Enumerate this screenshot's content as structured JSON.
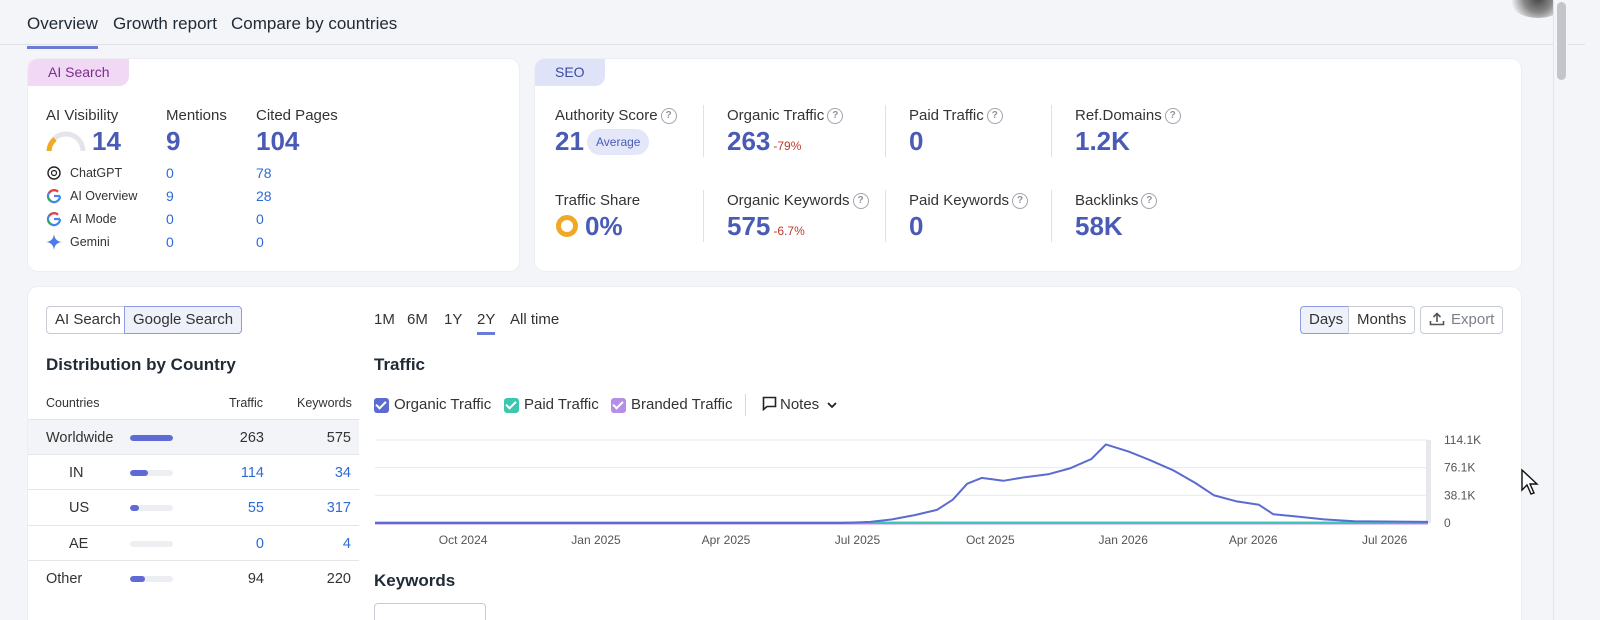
{
  "tabs": [
    {
      "label": "Overview",
      "active": true
    },
    {
      "label": "Growth report",
      "active": false
    },
    {
      "label": "Compare by countries",
      "active": false
    }
  ],
  "ai_card": {
    "tag": "AI Search",
    "visibility_label": "AI Visibility",
    "visibility_value": "14",
    "mentions_label": "Mentions",
    "mentions_value": "9",
    "cited_label": "Cited Pages",
    "cited_value": "104",
    "sources": [
      {
        "name": "ChatGPT",
        "mentions": "0",
        "cited": "78",
        "icon": "chatgpt-icon"
      },
      {
        "name": "AI Overview",
        "mentions": "9",
        "cited": "28",
        "icon": "google-icon"
      },
      {
        "name": "AI Mode",
        "mentions": "0",
        "cited": "0",
        "icon": "google-icon"
      },
      {
        "name": "Gemini",
        "mentions": "0",
        "cited": "0",
        "icon": "gemini-icon"
      }
    ]
  },
  "seo_card": {
    "tag": "SEO",
    "authority_label": "Authority Score",
    "authority_value": "21",
    "authority_badge": "Average",
    "traffic_share_label": "Traffic Share",
    "traffic_share_value": "0%",
    "organic_traffic_label": "Organic Traffic",
    "organic_traffic_value": "263",
    "organic_traffic_delta": "-79%",
    "organic_keywords_label": "Organic Keywords",
    "organic_keywords_value": "575",
    "organic_keywords_delta": "-6.7%",
    "paid_traffic_label": "Paid Traffic",
    "paid_traffic_value": "0",
    "paid_keywords_label": "Paid Keywords",
    "paid_keywords_value": "0",
    "ref_domains_label": "Ref.Domains",
    "ref_domains_value": "1.2K",
    "backlinks_label": "Backlinks",
    "backlinks_value": "58K"
  },
  "search_toggle": [
    "AI Search",
    "Google Search"
  ],
  "ranges": [
    "1M",
    "6M",
    "1Y",
    "2Y",
    "All time"
  ],
  "active_range": "2Y",
  "granularity": [
    "Days",
    "Months"
  ],
  "export_label": "Export",
  "distribution": {
    "title": "Distribution by Country",
    "headers": {
      "country": "Countries",
      "traffic": "Traffic",
      "keywords": "Keywords"
    },
    "rows": [
      {
        "name": "Worldwide",
        "traffic": "263",
        "keywords": "575",
        "share": 1.0
      },
      {
        "name": "IN",
        "traffic": "114",
        "keywords": "34",
        "share": 0.43
      },
      {
        "name": "US",
        "traffic": "55",
        "keywords": "317",
        "share": 0.21
      },
      {
        "name": "AE",
        "traffic": "0",
        "keywords": "4",
        "share": 0.0
      },
      {
        "name": "Other",
        "traffic": "94",
        "keywords": "220",
        "share": 0.36
      }
    ]
  },
  "traffic_section": {
    "title": "Traffic",
    "legend": [
      {
        "label": "Organic Traffic",
        "color": "#5b6bd1",
        "checked": true
      },
      {
        "label": "Paid Traffic",
        "color": "#3cc8b0",
        "checked": true
      },
      {
        "label": "Branded Traffic",
        "color": "#b58ee6",
        "checked": true
      }
    ],
    "notes_label": "Notes"
  },
  "keywords_title": "Keywords",
  "chart_data": {
    "type": "line",
    "x_ticks": [
      "Oct 2024",
      "Jan 2025",
      "Apr 2025",
      "Jul 2025",
      "Oct 2025",
      "Jan 2026",
      "Apr 2026",
      "Jul 2026"
    ],
    "y_ticks": [
      "114.1K",
      "76.1K",
      "38.1K",
      "0"
    ],
    "ylim": [
      0,
      114100
    ],
    "x_range": [
      "2024-08-01",
      "2026-07-31"
    ],
    "series": [
      {
        "name": "Organic Traffic",
        "color": "#5b6bd1",
        "points": [
          [
            "2024-08-01",
            0
          ],
          [
            "2025-06-20",
            0
          ],
          [
            "2025-07-10",
            1500
          ],
          [
            "2025-07-25",
            5000
          ],
          [
            "2025-08-10",
            11000
          ],
          [
            "2025-08-25",
            18000
          ],
          [
            "2025-09-05",
            32000
          ],
          [
            "2025-09-15",
            54000
          ],
          [
            "2025-09-25",
            62000
          ],
          [
            "2025-10-10",
            58000
          ],
          [
            "2025-10-25",
            63000
          ],
          [
            "2025-11-10",
            67000
          ],
          [
            "2025-11-25",
            75000
          ],
          [
            "2025-12-10",
            88000
          ],
          [
            "2025-12-20",
            108000
          ],
          [
            "2026-01-05",
            98000
          ],
          [
            "2026-01-20",
            86000
          ],
          [
            "2026-02-05",
            72000
          ],
          [
            "2026-02-20",
            55000
          ],
          [
            "2026-03-05",
            38000
          ],
          [
            "2026-03-20",
            30000
          ],
          [
            "2026-04-05",
            25000
          ],
          [
            "2026-04-15",
            12000
          ],
          [
            "2026-05-01",
            9000
          ],
          [
            "2026-05-20",
            5000
          ],
          [
            "2026-06-10",
            2500
          ],
          [
            "2026-07-31",
            1500
          ]
        ]
      },
      {
        "name": "Paid Traffic",
        "color": "#3cc8b0",
        "points": [
          [
            "2024-08-01",
            0
          ],
          [
            "2026-07-31",
            0
          ]
        ]
      },
      {
        "name": "Branded Traffic",
        "color": "#b58ee6",
        "points": [
          [
            "2024-08-01",
            0
          ],
          [
            "2026-07-31",
            0
          ]
        ]
      }
    ]
  }
}
